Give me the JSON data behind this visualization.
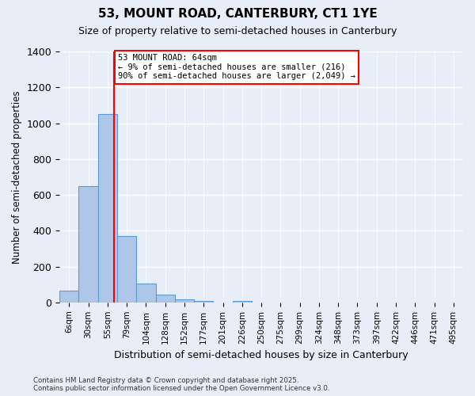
{
  "title": "53, MOUNT ROAD, CANTERBURY, CT1 1YE",
  "subtitle": "Size of property relative to semi-detached houses in Canterbury",
  "xlabel": "Distribution of semi-detached houses by size in Canterbury",
  "ylabel": "Number of semi-detached properties",
  "bin_labels": [
    "6sqm",
    "30sqm",
    "55sqm",
    "79sqm",
    "104sqm",
    "128sqm",
    "152sqm",
    "177sqm",
    "201sqm",
    "226sqm",
    "250sqm",
    "275sqm",
    "299sqm",
    "324sqm",
    "348sqm",
    "373sqm",
    "397sqm",
    "422sqm",
    "446sqm",
    "471sqm",
    "495sqm"
  ],
  "bar_values": [
    65,
    650,
    1050,
    370,
    105,
    45,
    15,
    10,
    0,
    10,
    0,
    0,
    0,
    0,
    0,
    0,
    0,
    0,
    0,
    0,
    0
  ],
  "bar_color": "#aec6e8",
  "bar_edge_color": "#5b9bd5",
  "property_line_x": 2.35,
  "annotation_text": "53 MOUNT ROAD: 64sqm\n← 9% of semi-detached houses are smaller (216)\n90% of semi-detached houses are larger (2,049) →",
  "ylim": [
    0,
    1400
  ],
  "yticks": [
    0,
    200,
    400,
    600,
    800,
    1000,
    1200,
    1400
  ],
  "background_color": "#e8eef8",
  "grid_color": "#ffffff",
  "footer_line1": "Contains HM Land Registry data © Crown copyright and database right 2025.",
  "footer_line2": "Contains public sector information licensed under the Open Government Licence v3.0."
}
